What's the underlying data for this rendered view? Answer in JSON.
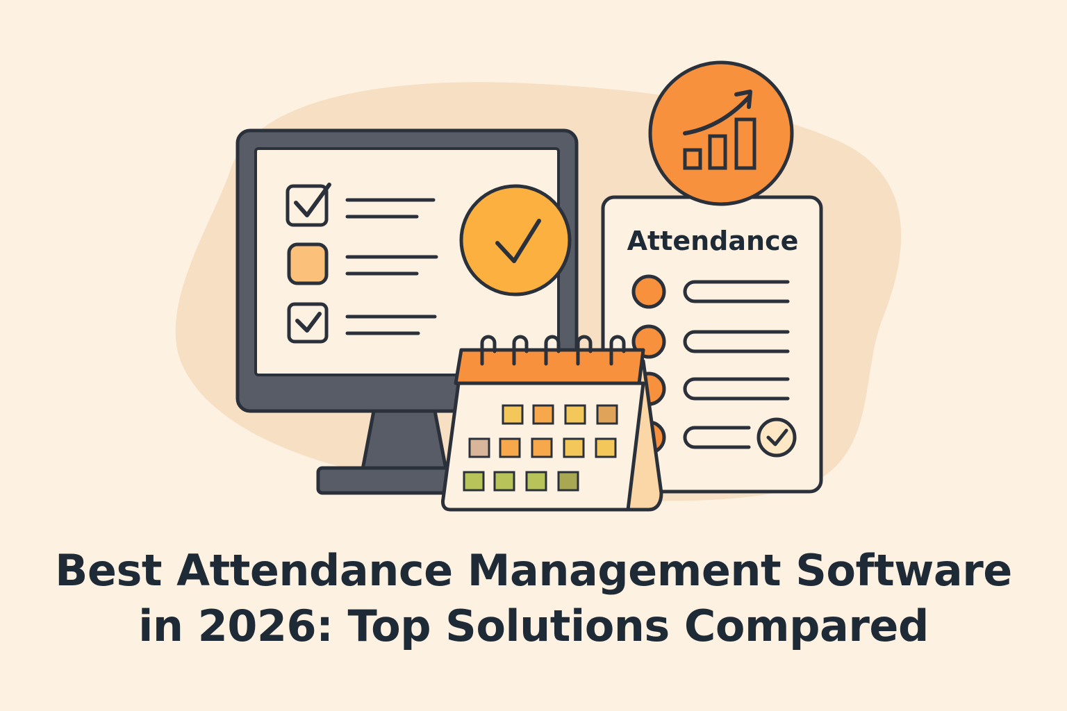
{
  "headline": {
    "line1": "Best Attendance Management Software",
    "line2": "in 2026: Top Solutions Compared"
  },
  "attendance_card": {
    "title": "Attendance"
  },
  "icons": {
    "monitor": "monitor-checklist-icon",
    "check_badge": "checkmark-badge-icon",
    "growth_badge": "growth-chart-icon",
    "calendar": "calendar-icon",
    "attendance_sheet": "attendance-sheet-icon"
  },
  "colors": {
    "background": "#fdf1e2",
    "blob": "#f6dfc2",
    "outline": "#2b313a",
    "monitor_frame": "#575c66",
    "orange": "#f7913d",
    "yellow_orange": "#fbb040",
    "text": "#1f2a37"
  }
}
